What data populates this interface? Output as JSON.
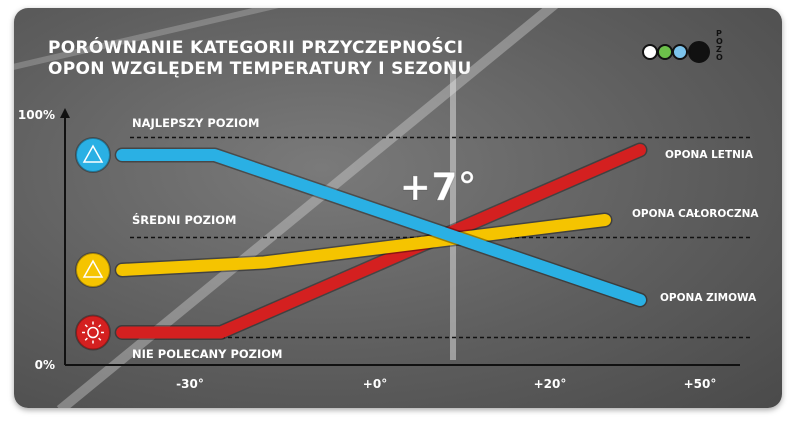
{
  "title_line1": "PORÓWNANIE KATEGORII PRZYCZEPNOŚCI",
  "title_line2": "OPON WZGLĘDEM TEMPERATURY I SEZONU",
  "logo": {
    "letters": "POZO",
    "text": "Polski Związek Przemysłu Oponiarskiego",
    "circle_colors": [
      "#ffffff",
      "#6cc04a",
      "#7cc4ec",
      "#111111"
    ]
  },
  "chart_data": {
    "type": "line",
    "xlabel": "",
    "ylabel": "",
    "x_ticks": [
      -30,
      0,
      20,
      50
    ],
    "x_tick_labels": [
      "-30°",
      "+0°",
      "+20°",
      "+50°"
    ],
    "y_ticks": [
      0,
      100
    ],
    "y_tick_labels": [
      "0%",
      "100%"
    ],
    "ylim": [
      0,
      100
    ],
    "grid": false,
    "reference_levels": [
      {
        "label": "NAJLEPSZY POZIOM",
        "value": 91
      },
      {
        "label": "ŚREDNI POZIOM",
        "value": 51
      },
      {
        "label": "NIE POLECANY POZIOM",
        "value": 11
      }
    ],
    "annotation": "+7°",
    "annotation_x": 7,
    "series": [
      {
        "name": "OPONA LETNIA",
        "color": "#d42020",
        "icon": "sun-icon",
        "x": [
          -41,
          -25,
          38
        ],
        "y": [
          13,
          13,
          86
        ]
      },
      {
        "name": "OPONA CAŁOROCZNA",
        "color": "#f5c400",
        "icon": "sun-snow-icon",
        "x": [
          -41,
          -18,
          31
        ],
        "y": [
          38,
          41,
          58
        ]
      },
      {
        "name": "OPONA ZIMOWA",
        "color": "#2ab0e4",
        "icon": "snow-mountain-icon",
        "x": [
          -41,
          -26,
          38
        ],
        "y": [
          84,
          84,
          26
        ]
      }
    ]
  }
}
